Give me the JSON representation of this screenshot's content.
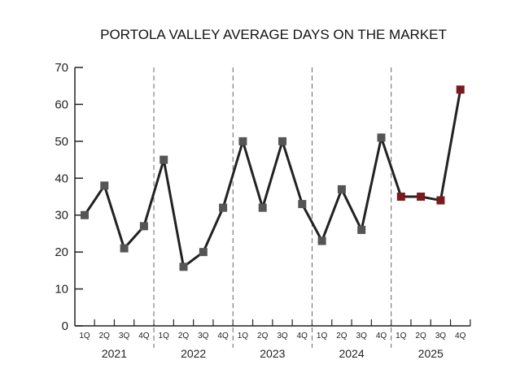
{
  "chart_data": {
    "type": "line",
    "title": "PORTOLA VALLEY AVERAGE DAYS ON THE MARKET",
    "xlabel": "",
    "ylabel": "",
    "ylim": [
      0,
      70
    ],
    "yticks": [
      "0",
      "10",
      "20",
      "30",
      "40",
      "50",
      "60",
      "70"
    ],
    "grid": false,
    "years": [
      "2021",
      "2022",
      "2023",
      "2024",
      "2025"
    ],
    "quarters": [
      "1Q",
      "2Q",
      "3Q",
      "4Q"
    ],
    "values": [
      30,
      38,
      21,
      27,
      45,
      16,
      20,
      32,
      50,
      32,
      50,
      33,
      23,
      37,
      26,
      51,
      35,
      35,
      34,
      64
    ],
    "highlight_year": "2025",
    "colors": {
      "marker": "#555555",
      "highlight_marker": "#7b1a1e",
      "line": "#222222",
      "divider": "#666666"
    }
  }
}
